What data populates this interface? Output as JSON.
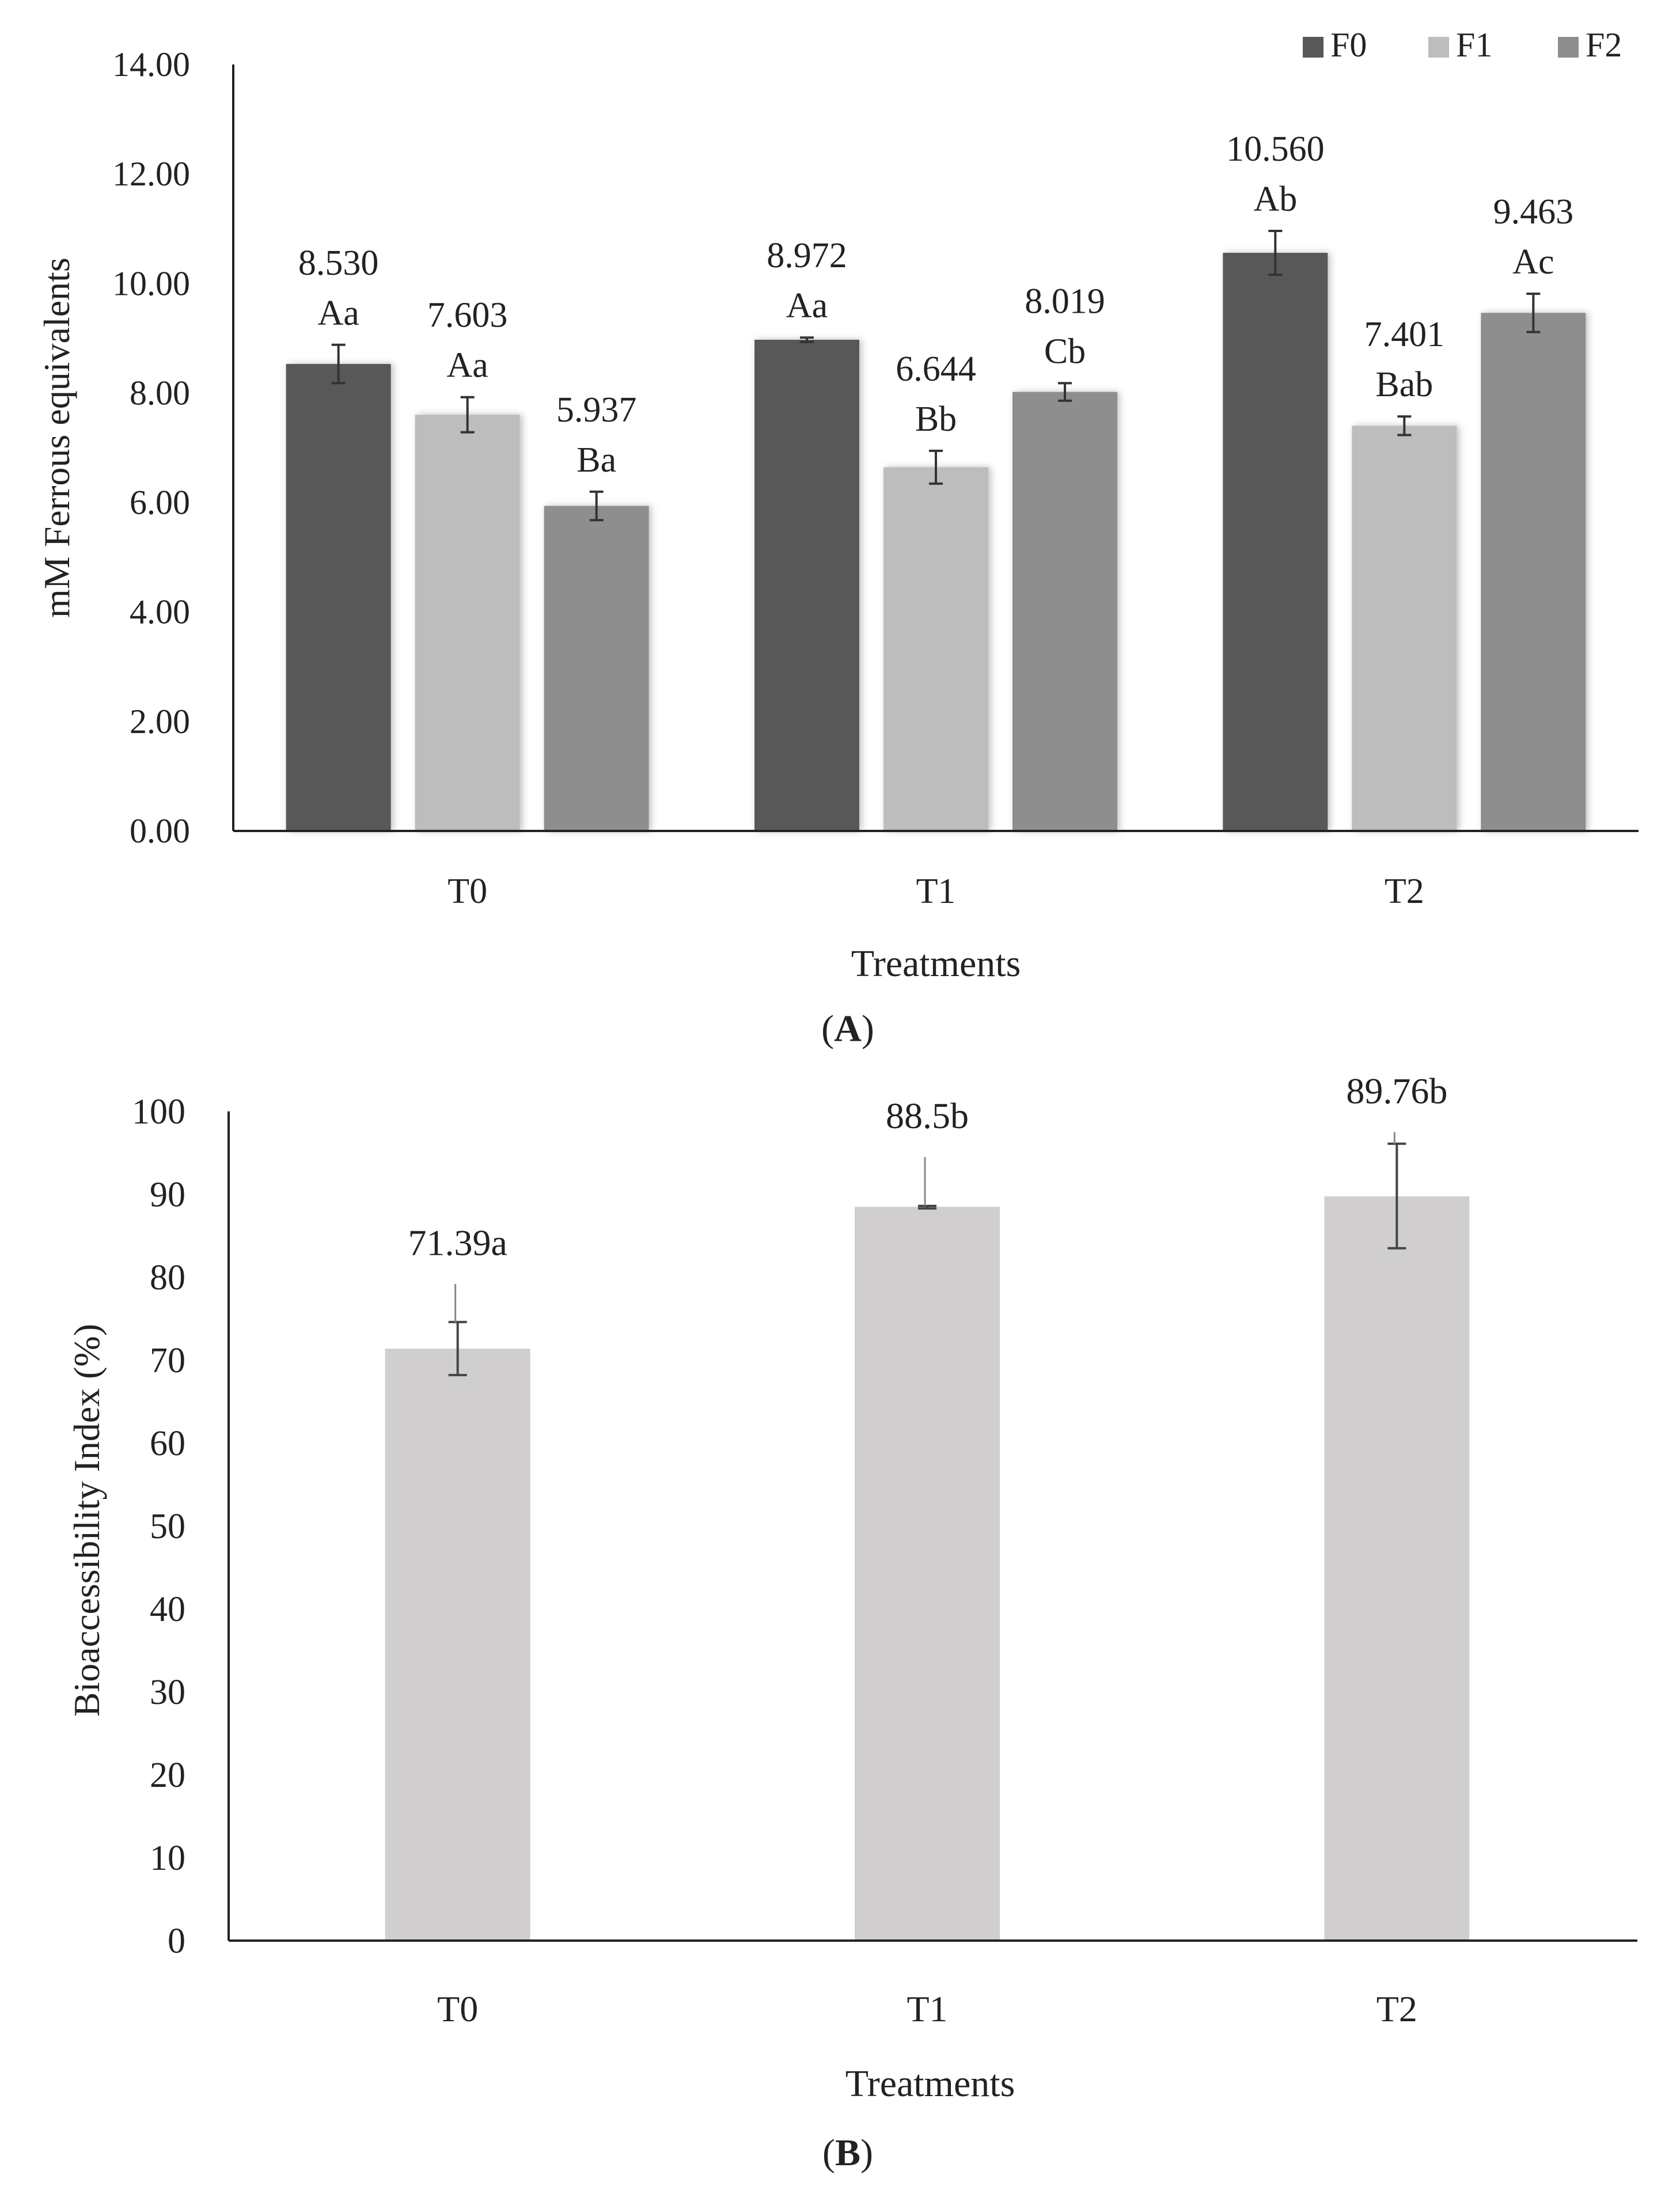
{
  "chart_data": [
    {
      "type": "bar",
      "panel_label": "A",
      "xlabel": "Treatments",
      "ylabel": "mM  Ferrous equivalents",
      "categories": [
        "T0",
        "T1",
        "T2"
      ],
      "ylim": [
        0,
        14
      ],
      "yticks": [
        "0.00",
        "2.00",
        "4.00",
        "6.00",
        "8.00",
        "10.00",
        "12.00",
        "14.00"
      ],
      "grid": false,
      "legend_position": "top-right",
      "series": [
        {
          "name": "F0",
          "color": "#585858",
          "values": [
            8.53,
            8.972,
            10.56
          ],
          "errors": [
            0.35,
            0.04,
            0.4
          ],
          "value_labels": [
            "8.530",
            "8.972",
            "10.560"
          ],
          "letters": [
            "Aa",
            "Aa",
            "Ab"
          ]
        },
        {
          "name": "F1",
          "color": "#bdbdbd",
          "values": [
            7.603,
            6.644,
            7.401
          ],
          "errors": [
            0.32,
            0.3,
            0.17
          ],
          "value_labels": [
            "7.603",
            "6.644",
            "7.401"
          ],
          "letters": [
            "Aa",
            "Bb",
            "Bab"
          ]
        },
        {
          "name": "F2",
          "color": "#8e8e8e",
          "values": [
            5.937,
            8.019,
            9.463
          ],
          "errors": [
            0.26,
            0.16,
            0.35
          ],
          "value_labels": [
            "5.937",
            "8.019",
            "9.463"
          ],
          "letters": [
            "Ba",
            "Cb",
            "Ac"
          ]
        }
      ]
    },
    {
      "type": "bar",
      "panel_label": "B",
      "xlabel": "Treatments",
      "ylabel": "Bioaccessibility Index (%)",
      "categories": [
        "T0",
        "T1",
        "T2"
      ],
      "ylim": [
        0,
        100
      ],
      "yticks": [
        "0",
        "10",
        "20",
        "30",
        "40",
        "50",
        "60",
        "70",
        "80",
        "90",
        "100"
      ],
      "grid": false,
      "series": [
        {
          "color": "#d0cecf",
          "values": [
            71.39,
            88.5,
            89.76
          ],
          "err_low": [
            68.2,
            88.3,
            83.5
          ],
          "err_high": [
            74.6,
            88.6,
            96.1
          ],
          "err_spike": [
            79.2,
            94.5,
            97.5
          ],
          "value_labels": [
            "71.39a",
            "88.5b",
            "89.76b"
          ]
        }
      ]
    }
  ]
}
